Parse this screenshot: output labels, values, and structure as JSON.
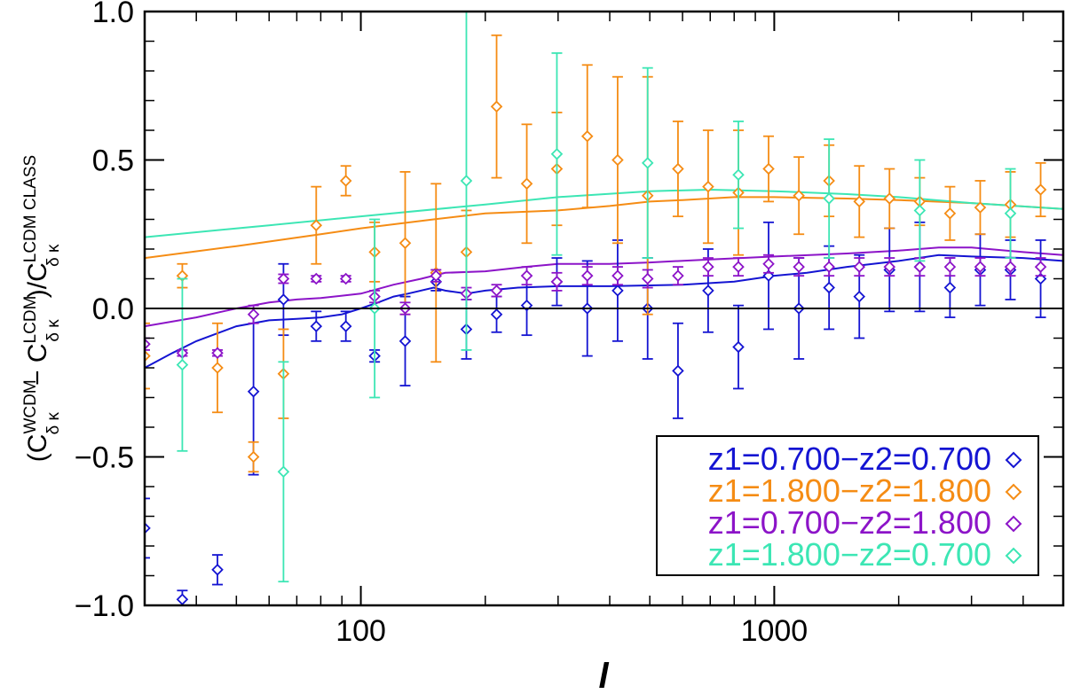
{
  "chart_data": {
    "type": "scatter",
    "xscale": "log",
    "xlim": [
      30,
      5000
    ],
    "ylim": [
      -1.0,
      1.0
    ],
    "xticks": [
      100,
      1000
    ],
    "xtick_labels": [
      "100",
      "1000"
    ],
    "yticks": [
      -1.0,
      -0.5,
      0.0,
      0.5,
      1.0
    ],
    "ytick_labels": [
      "−1.0",
      "−0.5",
      "0.0",
      "0.5",
      "1.0"
    ],
    "xlabel": "l",
    "ylabel": {
      "p1": "(C",
      "sub1": "δ κ",
      "sup1": "WCDM",
      "p2": "− C",
      "sub2": "δ κ",
      "sup2": "LCDM",
      "p3": ")/C",
      "sub3": "δ κ",
      "sup3": "LCDM CLASS"
    },
    "zero_line": 0.0,
    "legend_position": "bottom-right",
    "marker": "diamond",
    "series": [
      {
        "name": "z1=0.700−z2=0.700",
        "color": "#1414d2",
        "points": [
          {
            "x": 30,
            "y": -0.74,
            "err": 0.1
          },
          {
            "x": 37,
            "y": -0.98,
            "err": 0.03
          },
          {
            "x": 45,
            "y": -0.88,
            "err": 0.05
          },
          {
            "x": 55,
            "y": -0.28,
            "err": 0.28
          },
          {
            "x": 65,
            "y": 0.03,
            "err": 0.12
          },
          {
            "x": 78,
            "y": -0.06,
            "err": 0.05
          },
          {
            "x": 92,
            "y": -0.06,
            "err": 0.05
          },
          {
            "x": 108,
            "y": -0.16,
            "err": 0.02
          },
          {
            "x": 128,
            "y": -0.11,
            "err": 0.15
          },
          {
            "x": 152,
            "y": 0.09,
            "err": 0.03
          },
          {
            "x": 180,
            "y": -0.07,
            "err": 0.1
          },
          {
            "x": 213,
            "y": -0.02,
            "err": 0.06
          },
          {
            "x": 252,
            "y": 0.01,
            "err": 0.1
          },
          {
            "x": 298,
            "y": 0.09,
            "err": 0.08
          },
          {
            "x": 353,
            "y": 0.0,
            "err": 0.16
          },
          {
            "x": 418,
            "y": 0.06,
            "err": 0.17
          },
          {
            "x": 494,
            "y": 0.0,
            "err": 0.17
          },
          {
            "x": 585,
            "y": -0.21,
            "err": 0.16
          },
          {
            "x": 692,
            "y": 0.06,
            "err": 0.14
          },
          {
            "x": 819,
            "y": -0.13,
            "err": 0.14
          },
          {
            "x": 969,
            "y": 0.11,
            "err": 0.18
          },
          {
            "x": 1147,
            "y": 0.0,
            "err": 0.17
          },
          {
            "x": 1357,
            "y": 0.07,
            "err": 0.14
          },
          {
            "x": 1606,
            "y": 0.04,
            "err": 0.14
          },
          {
            "x": 1900,
            "y": 0.13,
            "err": 0.14
          },
          {
            "x": 2249,
            "y": 0.14,
            "err": 0.15
          },
          {
            "x": 2661,
            "y": 0.07,
            "err": 0.1
          },
          {
            "x": 3149,
            "y": 0.13,
            "err": 0.12
          },
          {
            "x": 3726,
            "y": 0.13,
            "err": 0.1
          },
          {
            "x": 4409,
            "y": 0.1,
            "err": 0.13
          }
        ],
        "curve": {
          "x": [
            30,
            35,
            40,
            50,
            60,
            70,
            80,
            90,
            100,
            110,
            120,
            130,
            150,
            160,
            180,
            200,
            240,
            300,
            400,
            600,
            800,
            1000,
            1200,
            1500,
            2000,
            2500,
            3000,
            4000,
            5000
          ],
          "y": [
            -0.2,
            -0.15,
            -0.11,
            -0.06,
            -0.04,
            -0.035,
            -0.03,
            -0.02,
            0.0,
            0.02,
            0.04,
            0.05,
            0.07,
            0.06,
            0.05,
            0.06,
            0.07,
            0.075,
            0.075,
            0.08,
            0.09,
            0.11,
            0.12,
            0.14,
            0.16,
            0.18,
            0.175,
            0.17,
            0.16
          ]
        }
      },
      {
        "name": "z1=1.800−z2=1.800",
        "color": "#f58c14",
        "points": [
          {
            "x": 30,
            "y": -0.16,
            "err": 0.11
          },
          {
            "x": 37,
            "y": 0.11,
            "err": 0.04
          },
          {
            "x": 45,
            "y": -0.2,
            "err": 0.15
          },
          {
            "x": 55,
            "y": -0.5,
            "err": 0.05
          },
          {
            "x": 65,
            "y": -0.22,
            "err": 0.15
          },
          {
            "x": 78,
            "y": 0.28,
            "err": 0.13
          },
          {
            "x": 92,
            "y": 0.43,
            "err": 0.05
          },
          {
            "x": 108,
            "y": 0.19,
            "err": 0.1
          },
          {
            "x": 128,
            "y": 0.22,
            "err": 0.24
          },
          {
            "x": 152,
            "y": 0.12,
            "err": 0.3
          },
          {
            "x": 180,
            "y": 0.19,
            "err": 0.14
          },
          {
            "x": 213,
            "y": 0.68,
            "err": 0.24
          },
          {
            "x": 252,
            "y": 0.42,
            "err": 0.2
          },
          {
            "x": 298,
            "y": 0.47,
            "err": 0.19
          },
          {
            "x": 353,
            "y": 0.58,
            "err": 0.24
          },
          {
            "x": 418,
            "y": 0.5,
            "err": 0.28
          },
          {
            "x": 494,
            "y": 0.38,
            "err": 0.4
          },
          {
            "x": 585,
            "y": 0.47,
            "err": 0.16
          },
          {
            "x": 692,
            "y": 0.41,
            "err": 0.19
          },
          {
            "x": 819,
            "y": 0.39,
            "err": 0.21
          },
          {
            "x": 969,
            "y": 0.47,
            "err": 0.11
          },
          {
            "x": 1147,
            "y": 0.38,
            "err": 0.13
          },
          {
            "x": 1357,
            "y": 0.43,
            "err": 0.12
          },
          {
            "x": 1606,
            "y": 0.36,
            "err": 0.12
          },
          {
            "x": 1900,
            "y": 0.37,
            "err": 0.1
          },
          {
            "x": 2249,
            "y": 0.36,
            "err": 0.08
          },
          {
            "x": 2661,
            "y": 0.32,
            "err": 0.09
          },
          {
            "x": 3149,
            "y": 0.34,
            "err": 0.09
          },
          {
            "x": 3726,
            "y": 0.35,
            "err": 0.11
          },
          {
            "x": 4409,
            "y": 0.4,
            "err": 0.09
          }
        ],
        "curve": {
          "x": [
            30,
            50,
            80,
            100,
            150,
            200,
            300,
            400,
            500,
            600,
            800,
            1000,
            1500,
            2000,
            3000,
            5000
          ],
          "y": [
            0.17,
            0.21,
            0.25,
            0.27,
            0.3,
            0.32,
            0.33,
            0.345,
            0.36,
            0.365,
            0.375,
            0.375,
            0.37,
            0.365,
            0.355,
            0.335
          ]
        }
      },
      {
        "name": "z1=0.700−z2=1.800",
        "color": "#8c14c8",
        "points": [
          {
            "x": 30,
            "y": -0.12,
            "err": 0.02
          },
          {
            "x": 37,
            "y": -0.15,
            "err": 0.01
          },
          {
            "x": 45,
            "y": -0.15,
            "err": 0.01
          },
          {
            "x": 55,
            "y": -0.02,
            "err": 0.03
          },
          {
            "x": 65,
            "y": 0.1,
            "err": 0.015
          },
          {
            "x": 78,
            "y": 0.1,
            "err": 0.01
          },
          {
            "x": 92,
            "y": 0.1,
            "err": 0.01
          },
          {
            "x": 108,
            "y": 0.04,
            "err": 0.02
          },
          {
            "x": 128,
            "y": 0.0,
            "err": 0.02
          },
          {
            "x": 152,
            "y": 0.11,
            "err": 0.02
          },
          {
            "x": 180,
            "y": 0.05,
            "err": 0.02
          },
          {
            "x": 213,
            "y": 0.06,
            "err": 0.02
          },
          {
            "x": 252,
            "y": 0.11,
            "err": 0.03
          },
          {
            "x": 298,
            "y": 0.09,
            "err": 0.03
          },
          {
            "x": 353,
            "y": 0.11,
            "err": 0.03
          },
          {
            "x": 418,
            "y": 0.11,
            "err": 0.03
          },
          {
            "x": 494,
            "y": 0.1,
            "err": 0.03
          },
          {
            "x": 585,
            "y": 0.11,
            "err": 0.03
          },
          {
            "x": 692,
            "y": 0.14,
            "err": 0.03
          },
          {
            "x": 819,
            "y": 0.14,
            "err": 0.03
          },
          {
            "x": 969,
            "y": 0.15,
            "err": 0.03
          },
          {
            "x": 1147,
            "y": 0.14,
            "err": 0.03
          },
          {
            "x": 1357,
            "y": 0.14,
            "err": 0.03
          },
          {
            "x": 1606,
            "y": 0.14,
            "err": 0.03
          },
          {
            "x": 1900,
            "y": 0.14,
            "err": 0.03
          },
          {
            "x": 2249,
            "y": 0.14,
            "err": 0.03
          },
          {
            "x": 2661,
            "y": 0.14,
            "err": 0.03
          },
          {
            "x": 3149,
            "y": 0.14,
            "err": 0.03
          },
          {
            "x": 3726,
            "y": 0.14,
            "err": 0.03
          },
          {
            "x": 4409,
            "y": 0.14,
            "err": 0.03
          }
        ],
        "curve": {
          "x": [
            30,
            40,
            50,
            60,
            70,
            80,
            100,
            120,
            140,
            160,
            200,
            250,
            300,
            400,
            500,
            700,
            1000,
            1500,
            2000,
            2500,
            3000,
            4000,
            5000
          ],
          "y": [
            -0.06,
            -0.03,
            0.0,
            0.02,
            0.03,
            0.035,
            0.05,
            0.08,
            0.1,
            0.12,
            0.125,
            0.14,
            0.15,
            0.15,
            0.155,
            0.165,
            0.175,
            0.185,
            0.195,
            0.205,
            0.205,
            0.19,
            0.18
          ]
        }
      },
      {
        "name": "z1=1.800−z2=0.700",
        "color": "#3ce6b4",
        "points": [
          {
            "x": 37,
            "y": -0.19,
            "err": 0.29
          },
          {
            "x": 65,
            "y": -0.55,
            "err": 0.37
          },
          {
            "x": 108,
            "y": 0.0,
            "err": 0.3
          },
          {
            "x": 180,
            "y": 0.43,
            "err": 0.57
          },
          {
            "x": 298,
            "y": 0.52,
            "err": 0.34
          },
          {
            "x": 494,
            "y": 0.49,
            "err": 0.32
          },
          {
            "x": 819,
            "y": 0.45,
            "err": 0.18
          },
          {
            "x": 1357,
            "y": 0.37,
            "err": 0.2
          },
          {
            "x": 2249,
            "y": 0.33,
            "err": 0.17
          },
          {
            "x": 3726,
            "y": 0.32,
            "err": 0.15
          }
        ],
        "curve": {
          "x": [
            30,
            60,
            100,
            200,
            300,
            500,
            700,
            1000,
            1500,
            2000,
            3000,
            5000
          ],
          "y": [
            0.24,
            0.28,
            0.31,
            0.35,
            0.375,
            0.395,
            0.4,
            0.395,
            0.385,
            0.375,
            0.355,
            0.335
          ]
        }
      }
    ]
  }
}
